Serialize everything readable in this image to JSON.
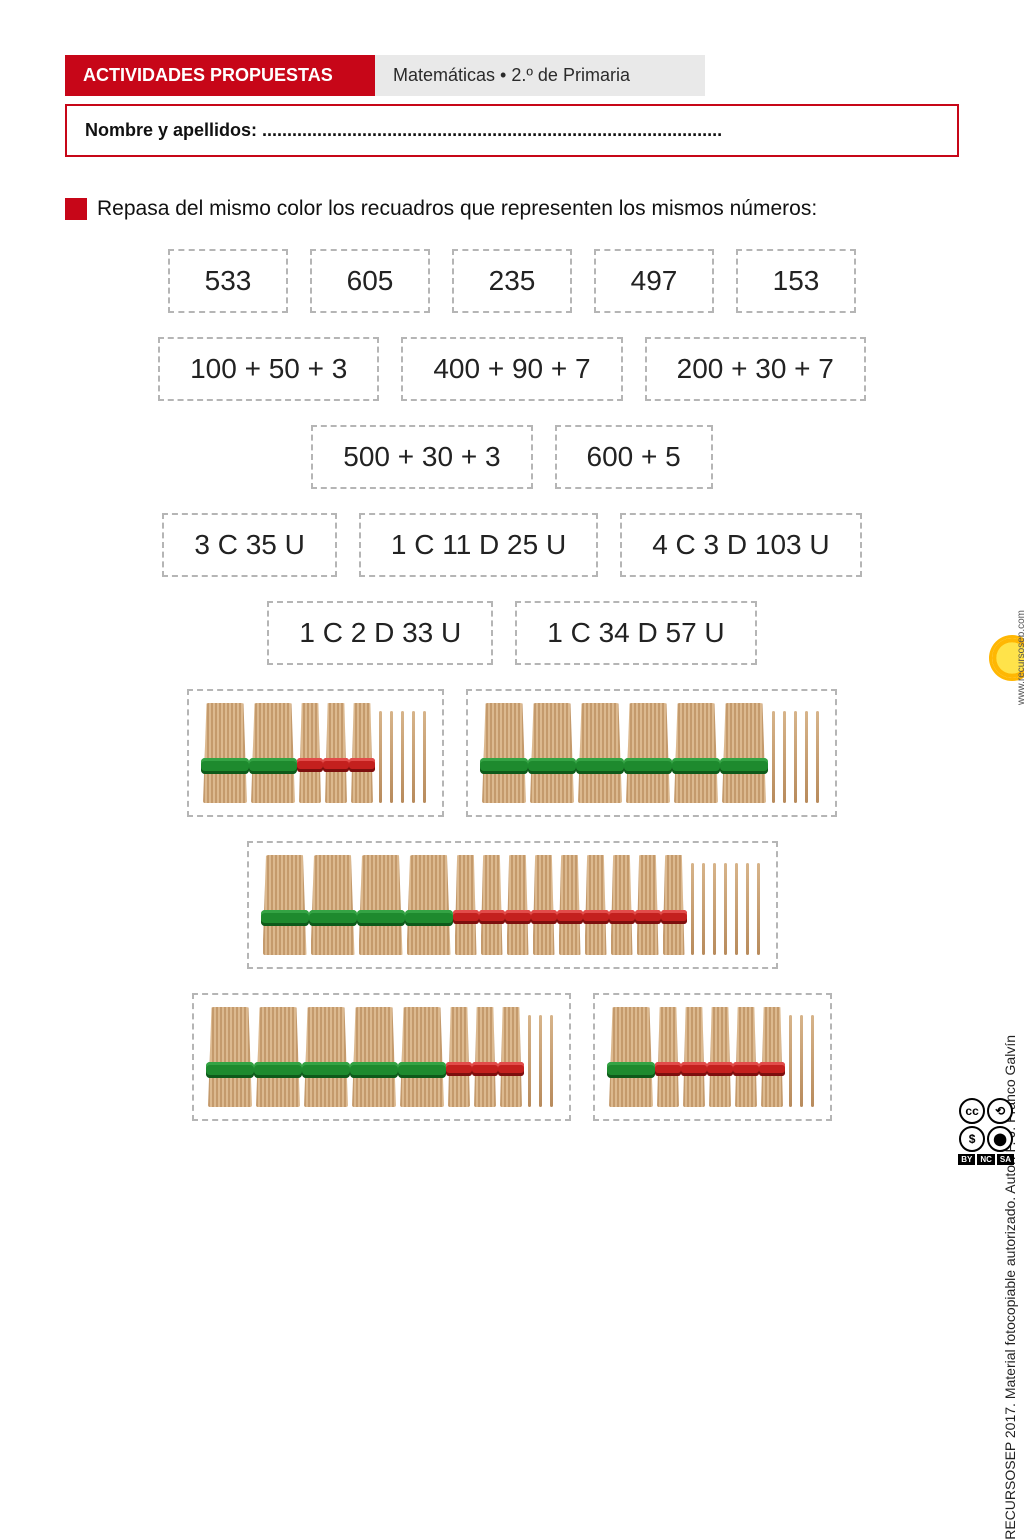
{
  "header": {
    "red_label": "ACTIVIDADES PROPUESTAS",
    "gray_label": "Matemáticas • 2.º de Primaria",
    "red_bg": "#c70618",
    "gray_bg": "#e9e9e9"
  },
  "name_line": "Nombre y apellidos: ............................................................................................",
  "instruction": "Repasa del mismo color los recuadros que representen los mismos números:",
  "row1": [
    "533",
    "605",
    "235",
    "497",
    "153"
  ],
  "row2": [
    "100 + 50 + 3",
    "400 + 90 + 7",
    "200 + 30 + 7"
  ],
  "row3": [
    "500 + 30 + 3",
    "600 + 5"
  ],
  "row4": [
    "3 C 35 U",
    "1 C 11 D 25 U",
    "4 C 3 D 103 U"
  ],
  "row5": [
    "1 C 2 D 33 U",
    "1 C 34 D 57 U"
  ],
  "stick_boxes": [
    {
      "hundreds": 2,
      "tens": 3,
      "units": 5
    },
    {
      "hundreds": 6,
      "tens": 0,
      "units": 5
    },
    {
      "hundreds": 4,
      "tens": 9,
      "units": 7
    },
    {
      "hundreds": 5,
      "tens": 3,
      "units": 3
    },
    {
      "hundreds": 1,
      "tens": 5,
      "units": 3
    }
  ],
  "stick_layout": [
    [
      0,
      1
    ],
    [
      2
    ],
    [
      3,
      4
    ]
  ],
  "colors": {
    "hundred_band": "#1e8a2e",
    "ten_band": "#c4201e",
    "stick": "#c49a6c",
    "dashed_border": "#b5b5b5",
    "text": "#222222"
  },
  "credit": "RECURSOSEP 2017. Material fotocopiable autorizado. Autor: F. J. Franco Galvín",
  "site_url": "www.recursosep.com",
  "cc": {
    "icons": [
      "cc",
      "by",
      "$",
      "sa"
    ],
    "labels": [
      "BY",
      "NC",
      "SA"
    ]
  }
}
